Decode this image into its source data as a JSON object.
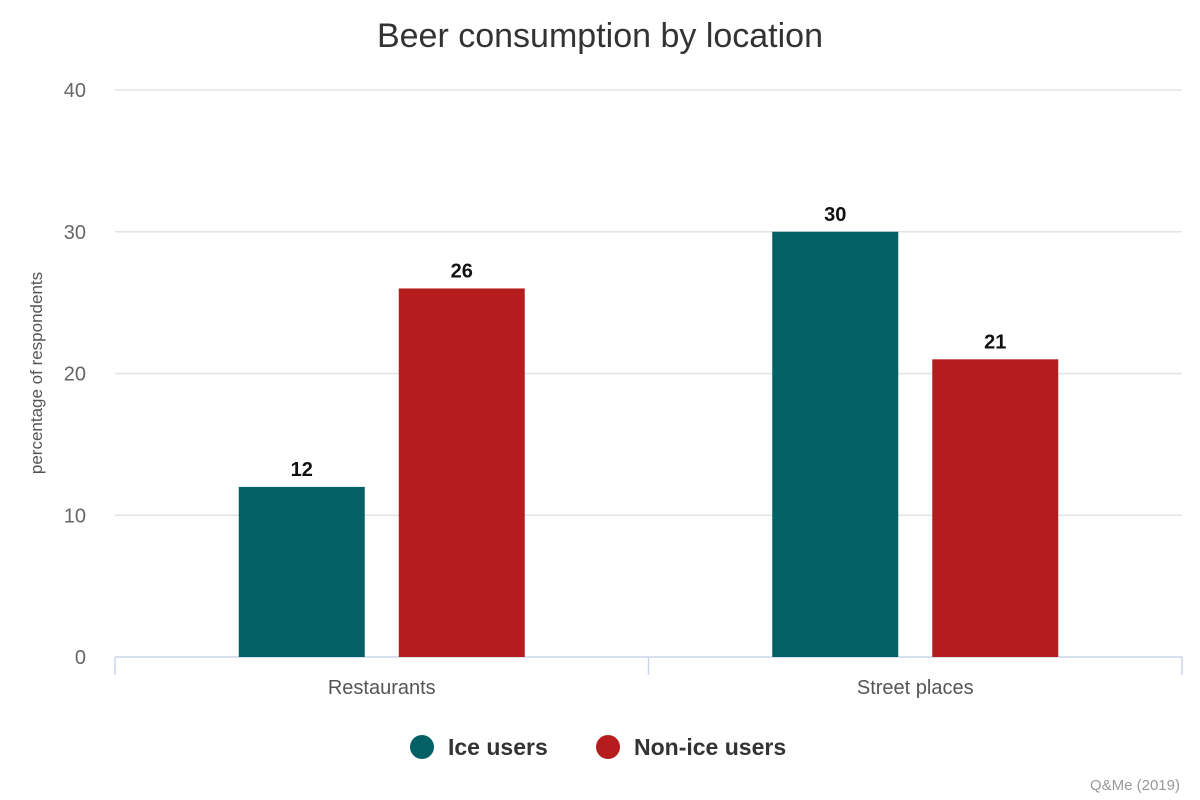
{
  "chart_data": {
    "type": "bar",
    "title": "Beer consumption by location",
    "xlabel": "",
    "ylabel": "percentage of respondents",
    "categories": [
      "Restaurants",
      "Street places"
    ],
    "series": [
      {
        "name": "Ice users",
        "color": "#036064",
        "values": [
          12,
          30
        ]
      },
      {
        "name": "Non-ice users",
        "color": "#b41c1e",
        "values": [
          26,
          21
        ]
      }
    ],
    "ylim": [
      0,
      40
    ],
    "yticks": [
      0,
      10,
      20,
      30,
      40
    ],
    "grid": true,
    "legend_position": "bottom-center",
    "data_labels": true
  },
  "credit": "Q&Me (2019)"
}
